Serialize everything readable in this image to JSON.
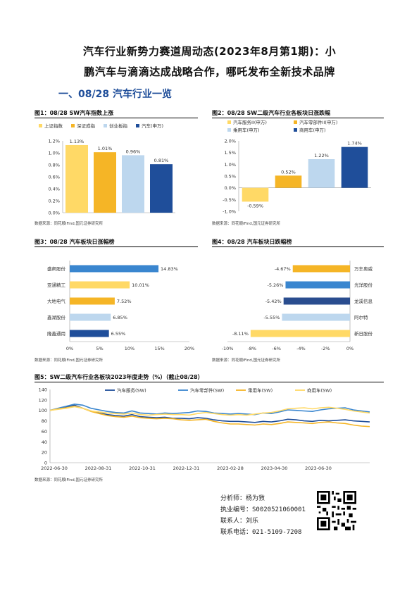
{
  "header": {
    "title_line1": "汽车行业新势力赛道周动态(2023年8月第1期)：小",
    "title_line2": "鹏汽车与滴滴达成战略合作，哪吒发布全新技术品牌",
    "section": "一、08/28 汽车行业一览"
  },
  "source_text": "数据来源：同花顺iFind,国元证券研究所",
  "chart_data": [
    {
      "id": "fig1",
      "title": "图1：08/28 SW汽车指数上涨",
      "type": "bar",
      "categories": [
        "上证指数",
        "深证成指",
        "创业板指",
        "汽车(申万)"
      ],
      "values": [
        1.13,
        1.01,
        0.96,
        0.81
      ],
      "value_labels": [
        "1.13%",
        "1.01%",
        "0.96%",
        "0.81%"
      ],
      "colors": [
        "#ffd966",
        "#f5b526",
        "#bdd7ee",
        "#1f4e9a"
      ],
      "ylim": [
        0,
        1.2
      ],
      "yticks": [
        "0.0%",
        "0.2%",
        "0.4%",
        "0.6%",
        "0.8%",
        "1.0%",
        "1.2%"
      ],
      "legend": "top"
    },
    {
      "id": "fig2",
      "title": "图2：08/28 SW二级汽车行业各板块日涨跌幅",
      "type": "bar",
      "categories": [
        "汽车服务II(申万)",
        "汽车零部件II(申万)",
        "乘用车(申万)",
        "商用车(申万)"
      ],
      "values": [
        -0.59,
        0.52,
        1.22,
        1.74
      ],
      "value_labels": [
        "-0.59%",
        "0.52%",
        "1.22%",
        "1.74%"
      ],
      "colors": [
        "#ffd966",
        "#f5b526",
        "#bdd7ee",
        "#1f4e9a"
      ],
      "ylim": [
        -1.0,
        2.0
      ],
      "yticks": [
        "-1.0%",
        "-0.5%",
        "0.0%",
        "0.5%",
        "1.0%",
        "1.5%",
        "2.0%"
      ],
      "legend": "top"
    },
    {
      "id": "fig3",
      "title": "图3：08/28 汽车板块日涨幅榜",
      "type": "bar",
      "categories": [
        "盛帮股份",
        "亚通精工",
        "大地电气",
        "鑫湖股份",
        "隆鑫通用"
      ],
      "values": [
        14.83,
        10.01,
        7.52,
        6.85,
        6.55
      ],
      "value_labels": [
        "14.83%",
        "10.01%",
        "7.52%",
        "6.85%",
        "6.55%"
      ],
      "colors": [
        "#3a86cf",
        "#ffd966",
        "#f5b526",
        "#bdd7ee",
        "#1f4e9a"
      ],
      "xlim": [
        0,
        20
      ],
      "xticks": [
        "0%",
        "5%",
        "10%",
        "15%",
        "20%"
      ]
    },
    {
      "id": "fig4",
      "title": "图4：08/28 汽车板块日跌幅榜",
      "type": "bar",
      "categories": [
        "万丰奥威",
        "光洋股份",
        "龙溪信息",
        "阿尔特",
        "新日股份"
      ],
      "values": [
        -4.67,
        -5.26,
        -5.42,
        -5.55,
        -8.11
      ],
      "value_labels": [
        "-4.67%",
        "-5.26%",
        "-5.42%",
        "-5.55%",
        "-8.11%"
      ],
      "colors": [
        "#f5b526",
        "#3a86cf",
        "#2a4d8f",
        "#bdd7ee",
        "#ffd966"
      ],
      "xlim": [
        -10,
        0
      ],
      "xticks": [
        "-10%",
        "-8%",
        "-6%",
        "-4%",
        "-2%",
        "0%"
      ]
    },
    {
      "id": "fig5",
      "title": "图5：SW二级汽车行业各板块2023年度走势（%）（截止08/28）",
      "type": "line",
      "ylim": [
        0,
        140
      ],
      "yticks": [
        "0",
        "20",
        "40",
        "60",
        "80",
        "100",
        "120",
        "140"
      ],
      "xticks": [
        "2022-06-30",
        "2022-08-31",
        "2022-10-31",
        "2022-12-31",
        "2023-02-28",
        "2023-04-30",
        "2023-06-30"
      ],
      "series": [
        {
          "name": "汽车服务(SW)",
          "color": "#1f4e9a",
          "values": [
            100,
            103,
            106,
            110,
            104,
            99,
            95,
            92,
            90,
            89,
            92,
            88,
            87,
            86,
            87,
            85,
            85,
            84,
            86,
            85,
            82,
            80,
            79,
            79,
            78,
            77,
            79,
            78,
            80,
            83,
            82,
            80,
            79,
            81,
            80,
            81,
            82,
            80,
            79,
            78
          ]
        },
        {
          "name": "汽车零部件(SW)",
          "color": "#3a86cf",
          "values": [
            100,
            104,
            108,
            112,
            110,
            104,
            101,
            98,
            96,
            95,
            99,
            95,
            94,
            93,
            95,
            94,
            95,
            96,
            99,
            98,
            95,
            94,
            93,
            94,
            93,
            92,
            95,
            94,
            97,
            101,
            100,
            99,
            98,
            101,
            103,
            104,
            105,
            101,
            99,
            97
          ]
        },
        {
          "name": "乘用车(SW)",
          "color": "#f5b526",
          "values": [
            100,
            103,
            105,
            108,
            104,
            98,
            94,
            90,
            88,
            87,
            89,
            86,
            85,
            84,
            85,
            84,
            82,
            81,
            82,
            83,
            79,
            76,
            74,
            74,
            73,
            72,
            74,
            73,
            75,
            78,
            77,
            76,
            75,
            77,
            78,
            76,
            75,
            72,
            70,
            69
          ]
        },
        {
          "name": "商用车(SW)",
          "color": "#ffd966",
          "values": [
            100,
            102,
            104,
            107,
            104,
            99,
            97,
            95,
            94,
            93,
            95,
            92,
            91,
            92,
            93,
            92,
            92,
            91,
            94,
            96,
            94,
            92,
            91,
            92,
            91,
            93,
            95,
            96,
            99,
            103,
            104,
            105,
            103,
            105,
            106,
            104,
            102,
            99,
            97,
            95
          ]
        }
      ]
    }
  ],
  "contact": {
    "analyst": "分析师：杨为敩",
    "cert": "执业编号：S0020521060001",
    "person": "联系人：刘乐",
    "phone": "联系电话：021-5109-7208"
  }
}
